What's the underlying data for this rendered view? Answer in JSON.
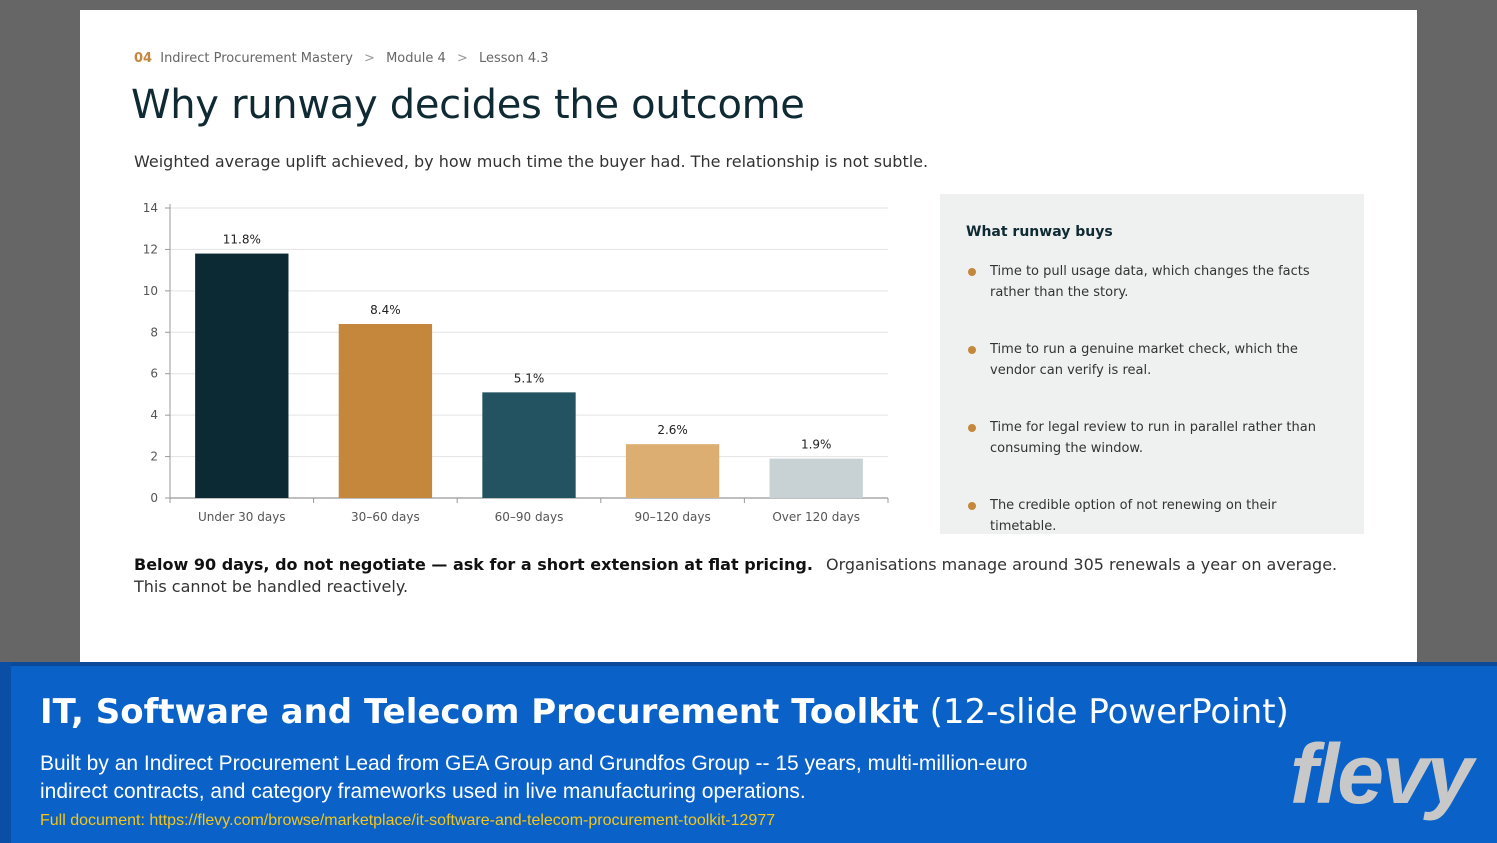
{
  "breadcrumb": {
    "number": "04",
    "items": [
      "Indirect Procurement Mastery",
      "Module 4",
      "Lesson 4.3"
    ],
    "separator": ">"
  },
  "title": "Why runway decides the outcome",
  "subtitle": "Weighted average uplift achieved, by how much time the buyer had. The relationship is not subtle.",
  "chart_data": {
    "type": "bar",
    "categories": [
      "Under 30 days",
      "30–60 days",
      "60–90 days",
      "90–120 days",
      "Over 120 days"
    ],
    "values": [
      11.8,
      8.4,
      5.1,
      2.6,
      1.9
    ],
    "data_labels": [
      "11.8%",
      "8.4%",
      "5.1%",
      "2.6%",
      "1.9%"
    ],
    "colors": [
      "#0b2a33",
      "#c4873c",
      "#235360",
      "#dcae72",
      "#c8d1d4"
    ],
    "ylim": [
      0,
      14
    ],
    "yticks": [
      0,
      2,
      4,
      6,
      8,
      10,
      12,
      14
    ],
    "grid": true,
    "title": "",
    "xlabel": "",
    "ylabel": ""
  },
  "panel": {
    "title": "What runway buys",
    "bullets": [
      "Time to pull usage data, which changes the facts rather than the story.",
      "Time to run a genuine market check, which the vendor can verify is real.",
      "Time for legal review to run in parallel rather than consuming the window.",
      "The credible option of not renewing on their timetable."
    ]
  },
  "footnote": {
    "bold": "Below 90 days, do not negotiate — ask for a short extension at flat pricing.",
    "text": "Organisations manage around 305 renewals a year on average. This cannot be handled reactively."
  },
  "banner": {
    "title_bold": "IT, Software and Telecom Procurement Toolkit",
    "title_normal": "(12-slide PowerPoint)",
    "description": "Built by an Indirect Procurement Lead from GEA Group and Grundfos Group -- 15 years, multi-million-euro indirect contracts, and category frameworks used in live manufacturing operations.",
    "link": "Full document: https://flevy.com/browse/marketplace/it-software-and-telecom-procurement-toolkit-12977",
    "logo": "flevy"
  }
}
